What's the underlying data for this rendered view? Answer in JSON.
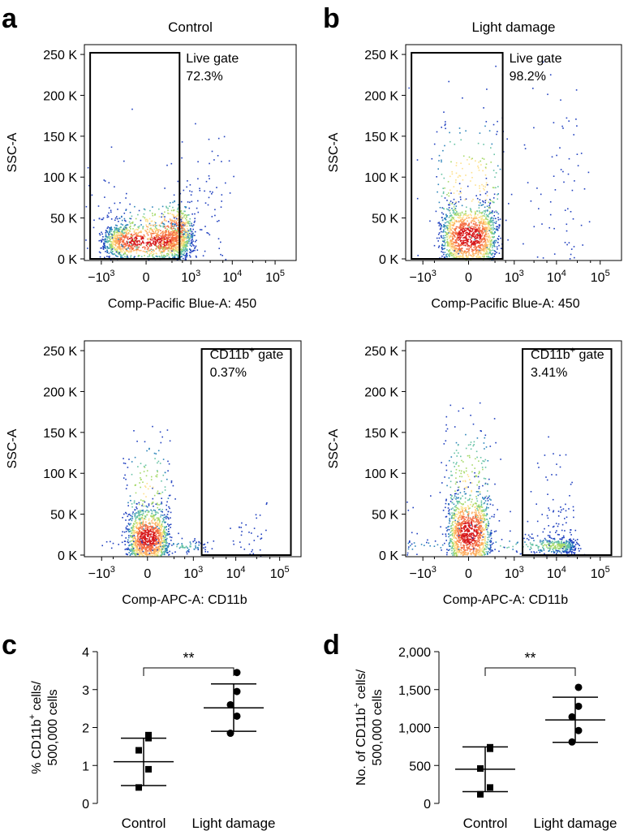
{
  "chart_data": [
    {
      "panel": "a",
      "type": "scatter",
      "title": "Control",
      "xlabel": "Comp-Pacific Blue-A: 450",
      "ylabel": "SSC-A",
      "xscale": "biexponential",
      "x_ticks": [
        "−10",
        "0",
        "10",
        "10",
        "10"
      ],
      "x_tick_exponents": [
        "3",
        "",
        "3",
        "4",
        "5"
      ],
      "y_ticks": [
        "250 K",
        "200 K",
        "150 K",
        "100 K",
        "50 K",
        "0 K"
      ],
      "gate": {
        "name": "Live gate",
        "value": "72.3%",
        "x_range": [
          -1900,
          500
        ],
        "y_range": [
          0,
          252000
        ]
      },
      "density": "pseudocolor, main population near x 0–500, y 10 K–60 K, sparse to 200 K"
    },
    {
      "panel": "b",
      "type": "scatter",
      "title": "Light damage",
      "xlabel": "Comp-Pacific Blue-A: 450",
      "ylabel": "SSC-A",
      "xscale": "biexponential",
      "x_ticks": [
        "−10",
        "0",
        "10",
        "10",
        "10"
      ],
      "x_tick_exponents": [
        "3",
        "",
        "3",
        "4",
        "5"
      ],
      "y_ticks": [
        "250 K",
        "200 K",
        "150 K",
        "100 K",
        "50 K",
        "0 K"
      ],
      "gate": {
        "name": "Live gate",
        "value": "98.2%",
        "x_range": [
          -1900,
          500
        ],
        "y_range": [
          0,
          252000
        ]
      },
      "density": "pseudocolor, tight population near x 0, y 10 K–100 K"
    },
    {
      "panel": "a-lower",
      "type": "scatter",
      "title": "",
      "xlabel": "Comp-APC-A: CD11b",
      "ylabel": "SSC-A",
      "xscale": "biexponential",
      "x_ticks": [
        "−10",
        "0",
        "10",
        "10",
        "10"
      ],
      "x_tick_exponents": [
        "3",
        "",
        "3",
        "4",
        "5"
      ],
      "y_ticks": [
        "250 K",
        "200 K",
        "150 K",
        "100 K",
        "50 K",
        "0 K"
      ],
      "gate": {
        "name": "CD11b",
        "sup": "+",
        "suffix": " gate",
        "value": "0.37%",
        "x_range": [
          1600,
          180000
        ],
        "y_range": [
          0,
          252000
        ]
      }
    },
    {
      "panel": "b-lower",
      "type": "scatter",
      "title": "",
      "xlabel": "Comp-APC-A: CD11b",
      "ylabel": "SSC-A",
      "xscale": "biexponential",
      "x_ticks": [
        "−10",
        "0",
        "10",
        "10",
        "10"
      ],
      "x_tick_exponents": [
        "3",
        "",
        "3",
        "4",
        "5"
      ],
      "y_ticks": [
        "250 K",
        "200 K",
        "150 K",
        "100 K",
        "50 K",
        "0 K"
      ],
      "gate": {
        "name": "CD11b",
        "sup": "+",
        "suffix": " gate",
        "value": "3.41%",
        "x_range": [
          1600,
          180000
        ],
        "y_range": [
          0,
          252000
        ]
      }
    },
    {
      "panel": "c",
      "type": "scatter",
      "categories": [
        "Control",
        "Light damage"
      ],
      "ylabel_parts": [
        "% CD11b",
        "+",
        " cells/",
        "500,000 cells"
      ],
      "ylim": [
        0,
        4
      ],
      "y_ticks": [
        "0",
        "1",
        "2",
        "3",
        "4"
      ],
      "significance": "**",
      "series": [
        {
          "points": [
            [
              1.8,
              1.72,
              1.4,
              0.9,
              0.42
            ],
            [
              3.45,
              2.95,
              2.6,
              2.3,
              1.85
            ]
          ],
          "mean": [
            1.1,
            2.52
          ],
          "sd_upper": [
            1.72,
            3.15
          ],
          "sd_lower": [
            0.47,
            1.9
          ]
        }
      ]
    },
    {
      "panel": "d",
      "type": "scatter",
      "categories": [
        "Control",
        "Light damage"
      ],
      "ylabel_parts": [
        "No. of CD11b",
        "+",
        " cells/",
        "500,000 cells"
      ],
      "ylim": [
        0,
        2000
      ],
      "y_ticks": [
        "0",
        "500",
        "1,000",
        "1,500",
        "2,000"
      ],
      "significance": "**",
      "series": [
        {
          "points": [
            [
              740,
              720,
              460,
              210,
              120
            ],
            [
              1530,
              1280,
              1140,
              960,
              810
            ]
          ],
          "mean": [
            450,
            1100
          ],
          "sd_upper": [
            745,
            1400
          ],
          "sd_lower": [
            155,
            805
          ]
        }
      ]
    }
  ],
  "panel_letters": [
    "a",
    "b",
    "c",
    "d"
  ],
  "colors": {
    "ink": "#000000",
    "dots": "#1f3fbf",
    "density_high": "#d7191c",
    "density_mid": "#fdae61",
    "density_low": "#2b83ba"
  }
}
